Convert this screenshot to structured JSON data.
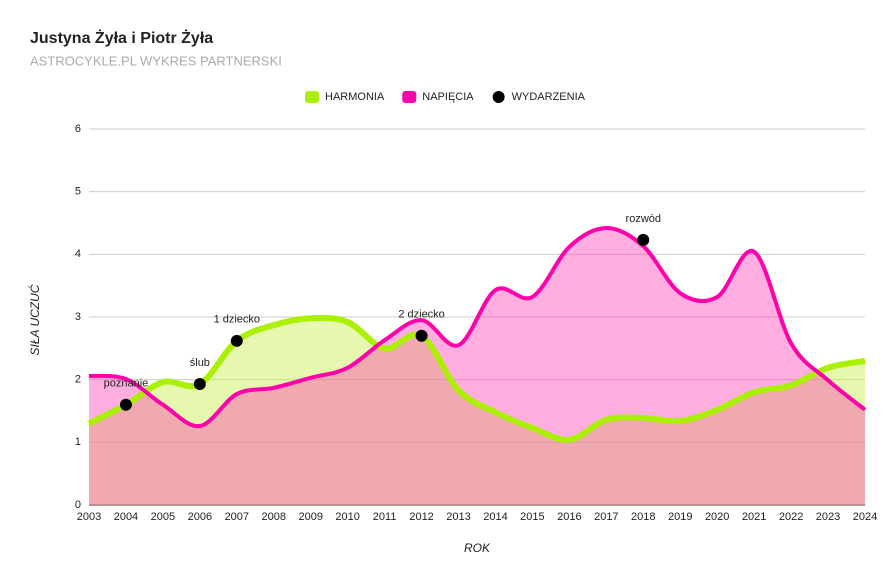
{
  "chart_data": {
    "type": "line",
    "area": true,
    "smooth": true,
    "title": "Justyna Żyła i Piotr Żyła",
    "subtitle": "ASTROCYKLE.PL WYKRES PARTNERSKI",
    "x_label": "ROK",
    "y_label": "SIŁA UCZUĆ",
    "x": [
      2003,
      2004,
      2005,
      2006,
      2007,
      2008,
      2009,
      2010,
      2011,
      2012,
      2013,
      2014,
      2015,
      2016,
      2017,
      2018,
      2019,
      2020,
      2021,
      2022,
      2023,
      2024
    ],
    "series": [
      {
        "name": "HARMONIA",
        "color": "#aaf000",
        "fill": "#c6f04a",
        "values": [
          1.3,
          1.6,
          1.96,
          1.93,
          2.62,
          2.87,
          2.98,
          2.92,
          2.5,
          2.7,
          1.83,
          1.48,
          1.23,
          1.04,
          1.36,
          1.39,
          1.34,
          1.52,
          1.8,
          1.91,
          2.19,
          2.3
        ]
      },
      {
        "name": "NAPIĘCIA",
        "color": "#ff00aa",
        "fill": "#ff3fb2",
        "values": [
          2.06,
          2.01,
          1.6,
          1.26,
          1.77,
          1.87,
          2.03,
          2.19,
          2.63,
          2.95,
          2.55,
          3.43,
          3.32,
          4.12,
          4.42,
          4.13,
          3.38,
          3.32,
          4.04,
          2.58,
          1.99,
          1.52
        ]
      }
    ],
    "events": {
      "name": "WYDARZENIA",
      "color": "#000000",
      "x": [
        2004,
        2006,
        2007,
        2012,
        2018
      ],
      "values": [
        1.6,
        1.93,
        2.62,
        2.7,
        4.23
      ],
      "labels": [
        "poznanie",
        "ślub",
        "1 dziecko",
        "2 dziecko",
        "rozwód"
      ]
    },
    "xlim": [
      2003,
      2024
    ],
    "xticks": [
      2003,
      2004,
      2005,
      2006,
      2007,
      2008,
      2009,
      2010,
      2011,
      2012,
      2013,
      2014,
      2015,
      2016,
      2017,
      2018,
      2019,
      2020,
      2021,
      2022,
      2023,
      2024
    ],
    "ylim": [
      0,
      6
    ],
    "yticks": [
      0,
      1,
      2,
      3,
      4,
      5,
      6
    ],
    "grid": true,
    "legend": "top"
  }
}
